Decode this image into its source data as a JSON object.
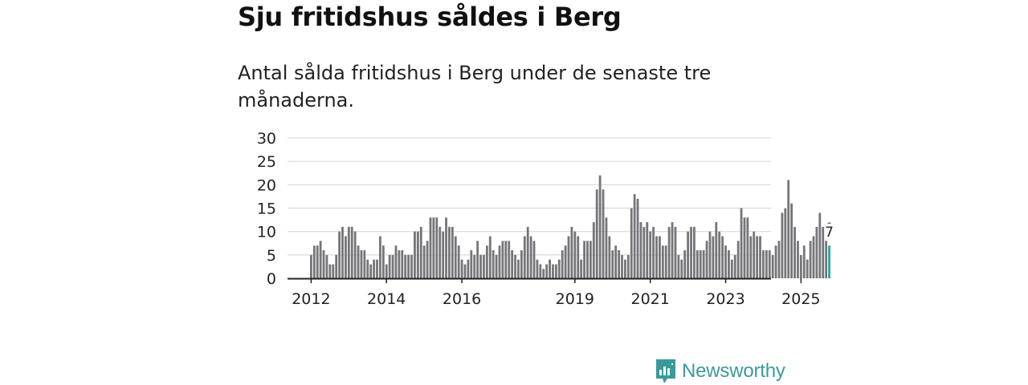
{
  "title": "Sju fritidshus såldes i Berg",
  "subtitle": "Antal sålda fritidshus i Berg under de senaste tre månaderna.",
  "brand": {
    "name": "Newsworthy",
    "color": "#3a9a9a"
  },
  "colors": {
    "bar": "#75757a",
    "highlight": "#2aa6a6",
    "grid": "#d9d9d9",
    "axis": "#222222",
    "text": "#222222"
  },
  "chart_data": {
    "type": "bar",
    "title": "Sju fritidshus såldes i Berg",
    "xlabel": "",
    "ylabel": "",
    "ylim": [
      0,
      30
    ],
    "y_ticks": [
      0,
      5,
      10,
      15,
      20,
      25,
      30
    ],
    "x_tick_labels": [
      {
        "label": "2012",
        "index": 0
      },
      {
        "label": "2014",
        "index": 24
      },
      {
        "label": "2016",
        "index": 48
      },
      {
        "label": "2019",
        "index": 84
      },
      {
        "label": "2021",
        "index": 108
      },
      {
        "label": "2023",
        "index": 132
      },
      {
        "label": "2025",
        "index": 156
      }
    ],
    "start": "2012-01",
    "values": [
      5,
      7,
      7,
      8,
      6,
      5,
      3,
      3,
      5,
      10,
      11,
      9,
      11,
      11,
      10,
      7,
      6,
      6,
      4,
      3,
      4,
      4,
      9,
      7,
      3,
      5,
      5,
      7,
      6,
      6,
      5,
      5,
      5,
      10,
      10,
      11,
      7,
      8,
      13,
      13,
      13,
      11,
      10,
      13,
      11,
      11,
      9,
      7,
      4,
      3,
      4,
      6,
      5,
      8,
      5,
      5,
      7,
      9,
      6,
      5,
      7,
      8,
      8,
      8,
      6,
      5,
      4,
      6,
      9,
      11,
      9,
      8,
      4,
      3,
      2,
      3,
      4,
      3,
      3,
      4,
      6,
      7,
      9,
      11,
      10,
      9,
      4,
      8,
      8,
      8,
      12,
      19,
      22,
      19,
      13,
      9,
      6,
      7,
      6,
      5,
      4,
      5,
      15,
      18,
      17,
      12,
      11,
      12,
      10,
      11,
      9,
      9,
      7,
      7,
      11,
      12,
      11,
      5,
      4,
      6,
      10,
      11,
      11,
      6,
      6,
      6,
      8,
      10,
      9,
      12,
      10,
      9,
      7,
      6,
      4,
      5,
      8,
      15,
      13,
      13,
      9,
      10,
      9,
      9,
      6,
      6,
      6,
      5,
      7,
      8,
      14,
      15,
      21,
      16,
      11,
      8,
      5,
      7,
      4,
      8,
      9,
      11,
      14,
      11,
      8,
      7
    ],
    "highlight_last": true,
    "annotation": "7"
  }
}
